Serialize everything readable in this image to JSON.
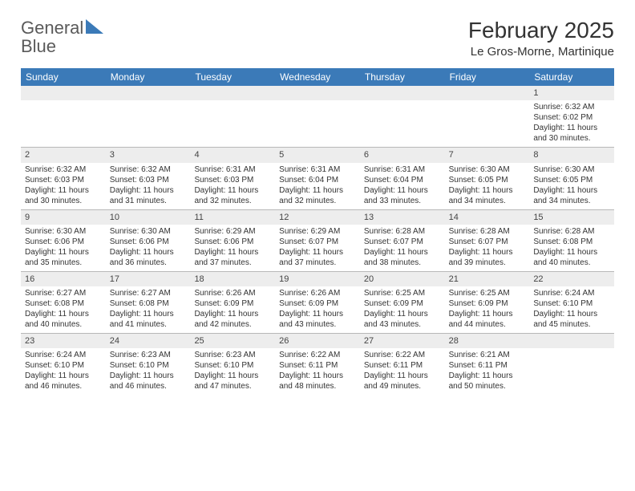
{
  "brand": {
    "word1": "General",
    "word2": "Blue"
  },
  "title": "February 2025",
  "location": "Le Gros-Morne, Martinique",
  "colors": {
    "header_bg": "#3b7ab8",
    "header_text": "#ffffff",
    "daynum_bg": "#ededed",
    "text": "#333333",
    "rule": "#b8b8b8",
    "page_bg": "#ffffff"
  },
  "day_names": [
    "Sunday",
    "Monday",
    "Tuesday",
    "Wednesday",
    "Thursday",
    "Friday",
    "Saturday"
  ],
  "weeks": [
    [
      {
        "n": "",
        "sr": "",
        "ss": "",
        "dl": ""
      },
      {
        "n": "",
        "sr": "",
        "ss": "",
        "dl": ""
      },
      {
        "n": "",
        "sr": "",
        "ss": "",
        "dl": ""
      },
      {
        "n": "",
        "sr": "",
        "ss": "",
        "dl": ""
      },
      {
        "n": "",
        "sr": "",
        "ss": "",
        "dl": ""
      },
      {
        "n": "",
        "sr": "",
        "ss": "",
        "dl": ""
      },
      {
        "n": "1",
        "sr": "Sunrise: 6:32 AM",
        "ss": "Sunset: 6:02 PM",
        "dl": "Daylight: 11 hours and 30 minutes."
      }
    ],
    [
      {
        "n": "2",
        "sr": "Sunrise: 6:32 AM",
        "ss": "Sunset: 6:03 PM",
        "dl": "Daylight: 11 hours and 30 minutes."
      },
      {
        "n": "3",
        "sr": "Sunrise: 6:32 AM",
        "ss": "Sunset: 6:03 PM",
        "dl": "Daylight: 11 hours and 31 minutes."
      },
      {
        "n": "4",
        "sr": "Sunrise: 6:31 AM",
        "ss": "Sunset: 6:03 PM",
        "dl": "Daylight: 11 hours and 32 minutes."
      },
      {
        "n": "5",
        "sr": "Sunrise: 6:31 AM",
        "ss": "Sunset: 6:04 PM",
        "dl": "Daylight: 11 hours and 32 minutes."
      },
      {
        "n": "6",
        "sr": "Sunrise: 6:31 AM",
        "ss": "Sunset: 6:04 PM",
        "dl": "Daylight: 11 hours and 33 minutes."
      },
      {
        "n": "7",
        "sr": "Sunrise: 6:30 AM",
        "ss": "Sunset: 6:05 PM",
        "dl": "Daylight: 11 hours and 34 minutes."
      },
      {
        "n": "8",
        "sr": "Sunrise: 6:30 AM",
        "ss": "Sunset: 6:05 PM",
        "dl": "Daylight: 11 hours and 34 minutes."
      }
    ],
    [
      {
        "n": "9",
        "sr": "Sunrise: 6:30 AM",
        "ss": "Sunset: 6:06 PM",
        "dl": "Daylight: 11 hours and 35 minutes."
      },
      {
        "n": "10",
        "sr": "Sunrise: 6:30 AM",
        "ss": "Sunset: 6:06 PM",
        "dl": "Daylight: 11 hours and 36 minutes."
      },
      {
        "n": "11",
        "sr": "Sunrise: 6:29 AM",
        "ss": "Sunset: 6:06 PM",
        "dl": "Daylight: 11 hours and 37 minutes."
      },
      {
        "n": "12",
        "sr": "Sunrise: 6:29 AM",
        "ss": "Sunset: 6:07 PM",
        "dl": "Daylight: 11 hours and 37 minutes."
      },
      {
        "n": "13",
        "sr": "Sunrise: 6:28 AM",
        "ss": "Sunset: 6:07 PM",
        "dl": "Daylight: 11 hours and 38 minutes."
      },
      {
        "n": "14",
        "sr": "Sunrise: 6:28 AM",
        "ss": "Sunset: 6:07 PM",
        "dl": "Daylight: 11 hours and 39 minutes."
      },
      {
        "n": "15",
        "sr": "Sunrise: 6:28 AM",
        "ss": "Sunset: 6:08 PM",
        "dl": "Daylight: 11 hours and 40 minutes."
      }
    ],
    [
      {
        "n": "16",
        "sr": "Sunrise: 6:27 AM",
        "ss": "Sunset: 6:08 PM",
        "dl": "Daylight: 11 hours and 40 minutes."
      },
      {
        "n": "17",
        "sr": "Sunrise: 6:27 AM",
        "ss": "Sunset: 6:08 PM",
        "dl": "Daylight: 11 hours and 41 minutes."
      },
      {
        "n": "18",
        "sr": "Sunrise: 6:26 AM",
        "ss": "Sunset: 6:09 PM",
        "dl": "Daylight: 11 hours and 42 minutes."
      },
      {
        "n": "19",
        "sr": "Sunrise: 6:26 AM",
        "ss": "Sunset: 6:09 PM",
        "dl": "Daylight: 11 hours and 43 minutes."
      },
      {
        "n": "20",
        "sr": "Sunrise: 6:25 AM",
        "ss": "Sunset: 6:09 PM",
        "dl": "Daylight: 11 hours and 43 minutes."
      },
      {
        "n": "21",
        "sr": "Sunrise: 6:25 AM",
        "ss": "Sunset: 6:09 PM",
        "dl": "Daylight: 11 hours and 44 minutes."
      },
      {
        "n": "22",
        "sr": "Sunrise: 6:24 AM",
        "ss": "Sunset: 6:10 PM",
        "dl": "Daylight: 11 hours and 45 minutes."
      }
    ],
    [
      {
        "n": "23",
        "sr": "Sunrise: 6:24 AM",
        "ss": "Sunset: 6:10 PM",
        "dl": "Daylight: 11 hours and 46 minutes."
      },
      {
        "n": "24",
        "sr": "Sunrise: 6:23 AM",
        "ss": "Sunset: 6:10 PM",
        "dl": "Daylight: 11 hours and 46 minutes."
      },
      {
        "n": "25",
        "sr": "Sunrise: 6:23 AM",
        "ss": "Sunset: 6:10 PM",
        "dl": "Daylight: 11 hours and 47 minutes."
      },
      {
        "n": "26",
        "sr": "Sunrise: 6:22 AM",
        "ss": "Sunset: 6:11 PM",
        "dl": "Daylight: 11 hours and 48 minutes."
      },
      {
        "n": "27",
        "sr": "Sunrise: 6:22 AM",
        "ss": "Sunset: 6:11 PM",
        "dl": "Daylight: 11 hours and 49 minutes."
      },
      {
        "n": "28",
        "sr": "Sunrise: 6:21 AM",
        "ss": "Sunset: 6:11 PM",
        "dl": "Daylight: 11 hours and 50 minutes."
      },
      {
        "n": "",
        "sr": "",
        "ss": "",
        "dl": ""
      }
    ]
  ]
}
